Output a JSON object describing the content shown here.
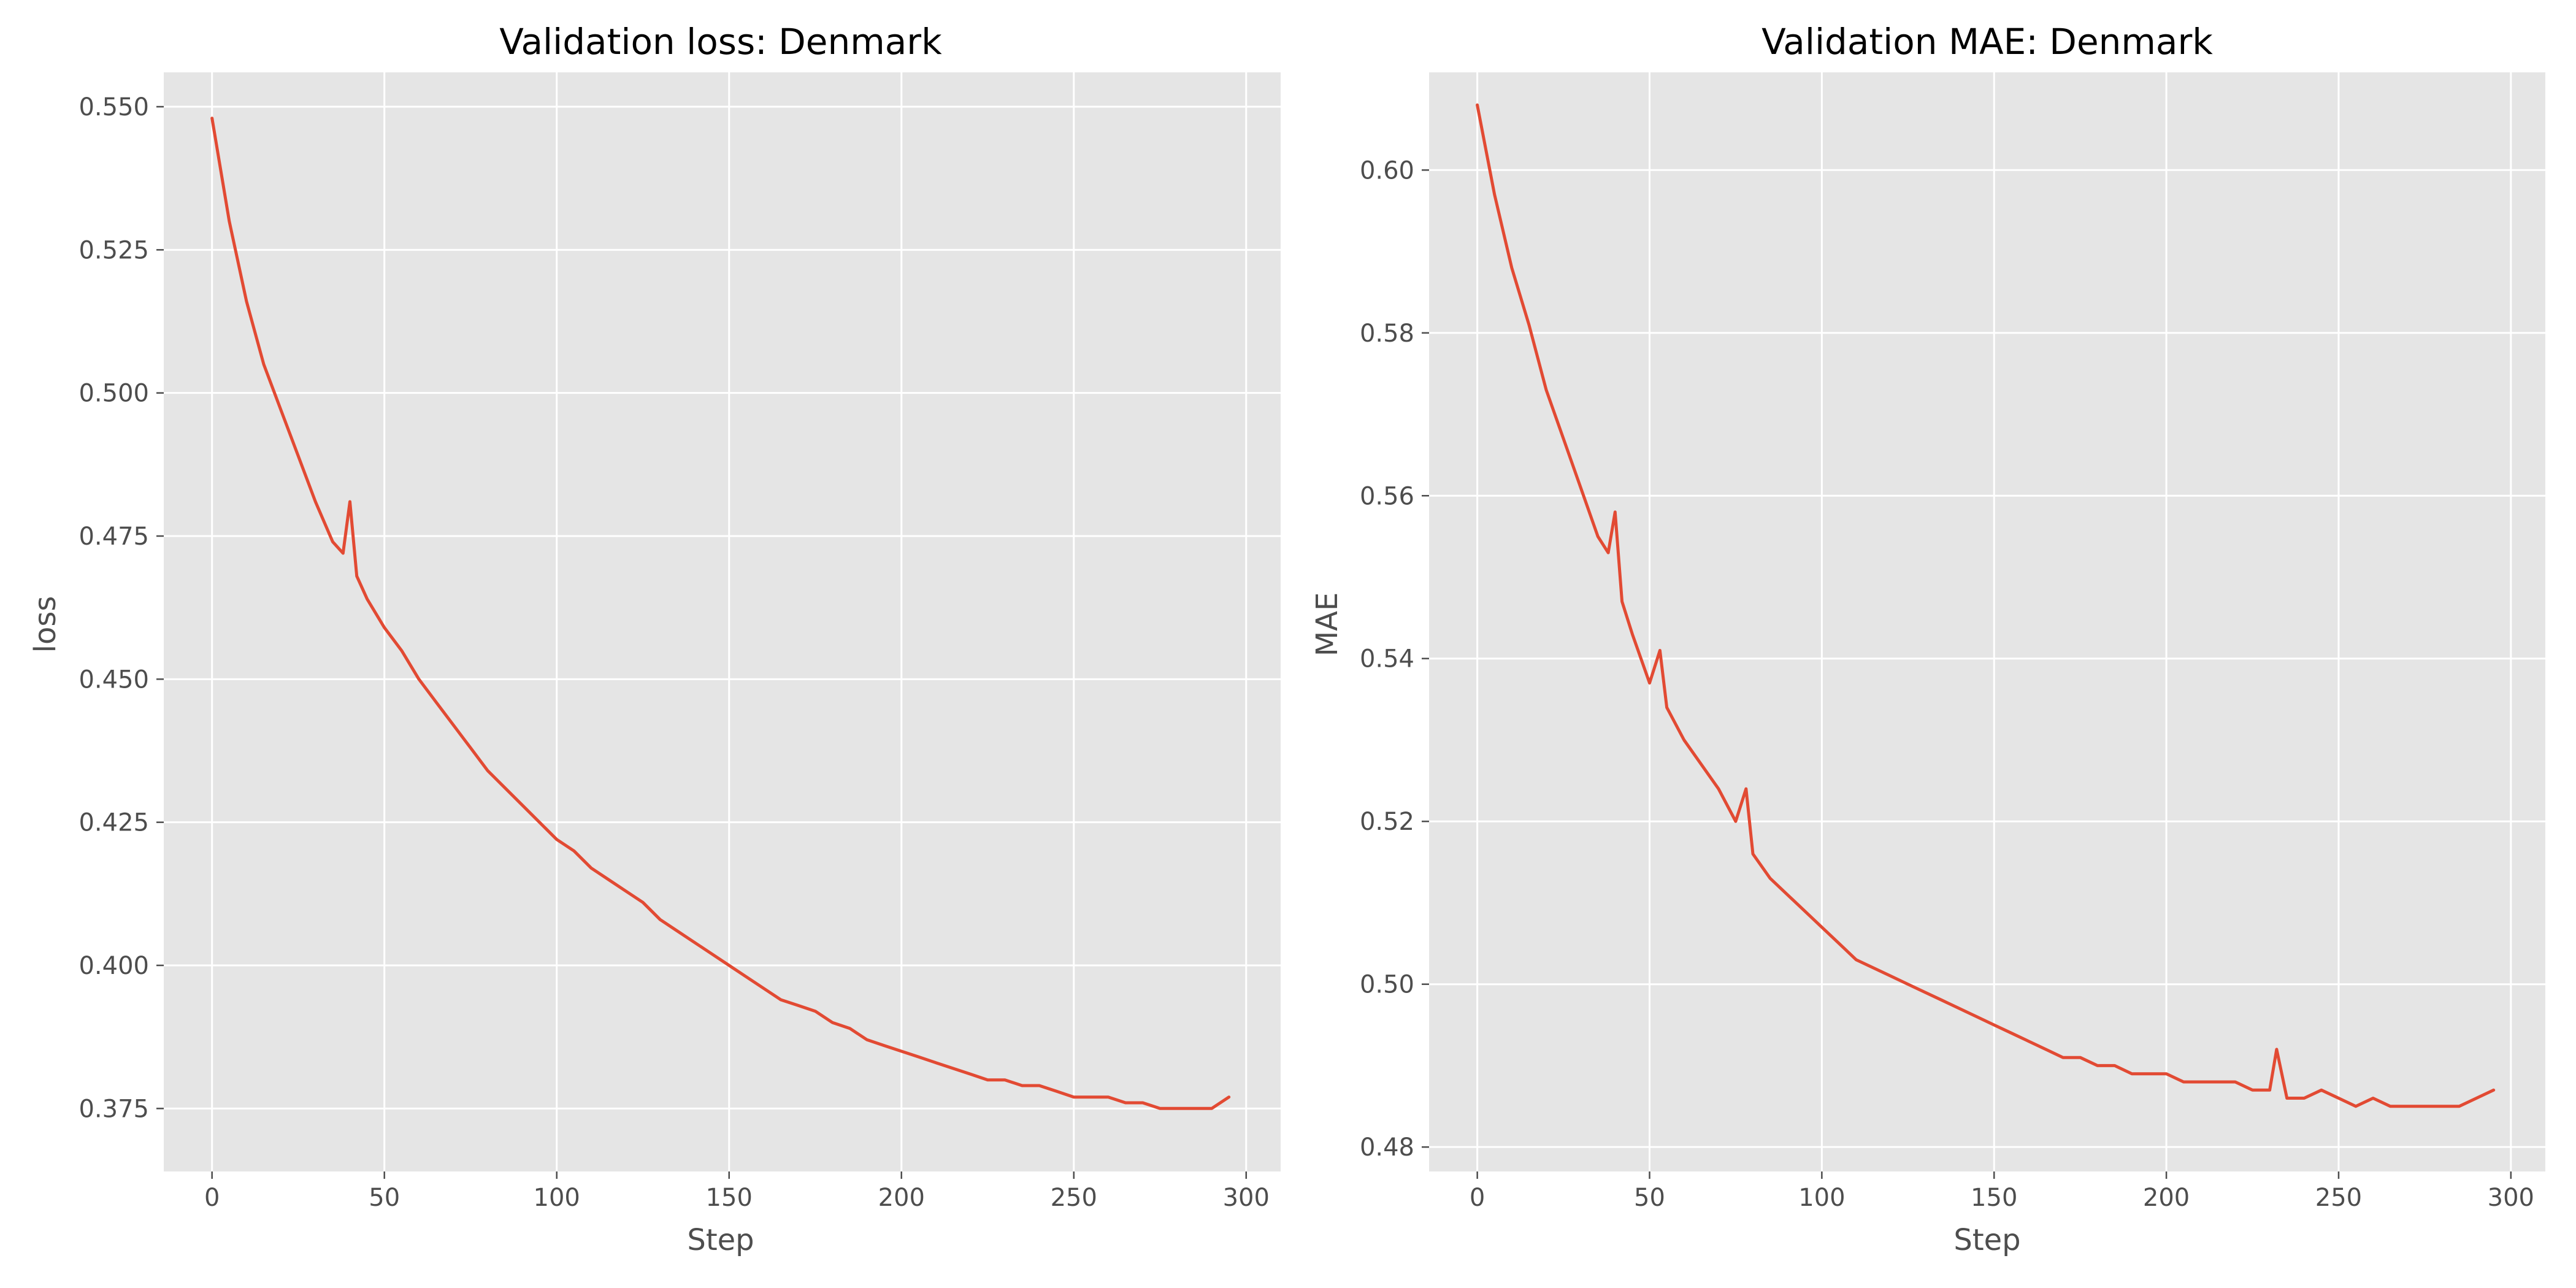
{
  "colors": {
    "series": "#e24a33",
    "background": "#e5e5e5",
    "grid": "#ffffff",
    "text": "#4d4d4d"
  },
  "chart_data": [
    {
      "type": "line",
      "title": "Validation loss: Denmark",
      "xlabel": "Step",
      "ylabel": "loss",
      "xlim": [
        -14,
        310
      ],
      "ylim": [
        0.364,
        0.556
      ],
      "xticks": [
        0,
        50,
        100,
        150,
        200,
        250,
        300
      ],
      "yticks": [
        0.375,
        0.4,
        0.425,
        0.45,
        0.475,
        0.5,
        0.525,
        0.55
      ],
      "xtick_labels": [
        "0",
        "50",
        "100",
        "150",
        "200",
        "250",
        "300"
      ],
      "ytick_labels": [
        "0.375",
        "0.400",
        "0.425",
        "0.450",
        "0.475",
        "0.500",
        "0.525",
        "0.550"
      ],
      "grid": true,
      "x": [
        0,
        5,
        10,
        15,
        20,
        25,
        30,
        35,
        38,
        40,
        42,
        45,
        50,
        55,
        60,
        65,
        70,
        75,
        80,
        85,
        90,
        95,
        100,
        105,
        110,
        115,
        120,
        125,
        130,
        135,
        140,
        145,
        150,
        155,
        160,
        165,
        170,
        175,
        180,
        185,
        190,
        195,
        200,
        205,
        210,
        215,
        220,
        225,
        230,
        235,
        240,
        245,
        250,
        255,
        260,
        265,
        270,
        275,
        280,
        285,
        290,
        295
      ],
      "y": [
        0.548,
        0.53,
        0.516,
        0.505,
        0.497,
        0.489,
        0.481,
        0.474,
        0.472,
        0.481,
        0.468,
        0.464,
        0.459,
        0.455,
        0.45,
        0.446,
        0.442,
        0.438,
        0.434,
        0.431,
        0.428,
        0.425,
        0.422,
        0.42,
        0.417,
        0.415,
        0.413,
        0.411,
        0.408,
        0.406,
        0.404,
        0.402,
        0.4,
        0.398,
        0.396,
        0.394,
        0.393,
        0.392,
        0.39,
        0.389,
        0.387,
        0.386,
        0.385,
        0.384,
        0.383,
        0.382,
        0.381,
        0.38,
        0.38,
        0.379,
        0.379,
        0.378,
        0.377,
        0.377,
        0.377,
        0.376,
        0.376,
        0.375,
        0.375,
        0.375,
        0.375,
        0.377
      ],
      "series_name": ""
    },
    {
      "type": "line",
      "title": "Validation MAE: Denmark",
      "xlabel": "Step",
      "ylabel": "MAE",
      "xlim": [
        -14,
        310
      ],
      "ylim": [
        0.477,
        0.612
      ],
      "xticks": [
        0,
        50,
        100,
        150,
        200,
        250,
        300
      ],
      "yticks": [
        0.48,
        0.5,
        0.52,
        0.54,
        0.56,
        0.58,
        0.6
      ],
      "xtick_labels": [
        "0",
        "50",
        "100",
        "150",
        "200",
        "250",
        "300"
      ],
      "ytick_labels": [
        "0.48",
        "0.50",
        "0.52",
        "0.54",
        "0.56",
        "0.58",
        "0.60"
      ],
      "grid": true,
      "x": [
        0,
        5,
        10,
        15,
        20,
        25,
        30,
        35,
        38,
        40,
        42,
        45,
        50,
        53,
        55,
        60,
        65,
        70,
        75,
        78,
        80,
        85,
        90,
        95,
        100,
        105,
        110,
        115,
        120,
        125,
        130,
        135,
        140,
        145,
        150,
        155,
        160,
        165,
        170,
        175,
        180,
        185,
        190,
        195,
        200,
        205,
        210,
        215,
        220,
        225,
        230,
        232,
        235,
        240,
        245,
        250,
        255,
        260,
        265,
        270,
        275,
        280,
        285,
        290,
        295
      ],
      "y": [
        0.608,
        0.597,
        0.588,
        0.581,
        0.573,
        0.567,
        0.561,
        0.555,
        0.553,
        0.558,
        0.547,
        0.543,
        0.537,
        0.541,
        0.534,
        0.53,
        0.527,
        0.524,
        0.52,
        0.524,
        0.516,
        0.513,
        0.511,
        0.509,
        0.507,
        0.505,
        0.503,
        0.502,
        0.501,
        0.5,
        0.499,
        0.498,
        0.497,
        0.496,
        0.495,
        0.494,
        0.493,
        0.492,
        0.491,
        0.491,
        0.49,
        0.49,
        0.489,
        0.489,
        0.489,
        0.488,
        0.488,
        0.488,
        0.488,
        0.487,
        0.487,
        0.492,
        0.486,
        0.486,
        0.487,
        0.486,
        0.485,
        0.486,
        0.485,
        0.485,
        0.485,
        0.485,
        0.485,
        0.486,
        0.487
      ],
      "series_name": ""
    }
  ]
}
